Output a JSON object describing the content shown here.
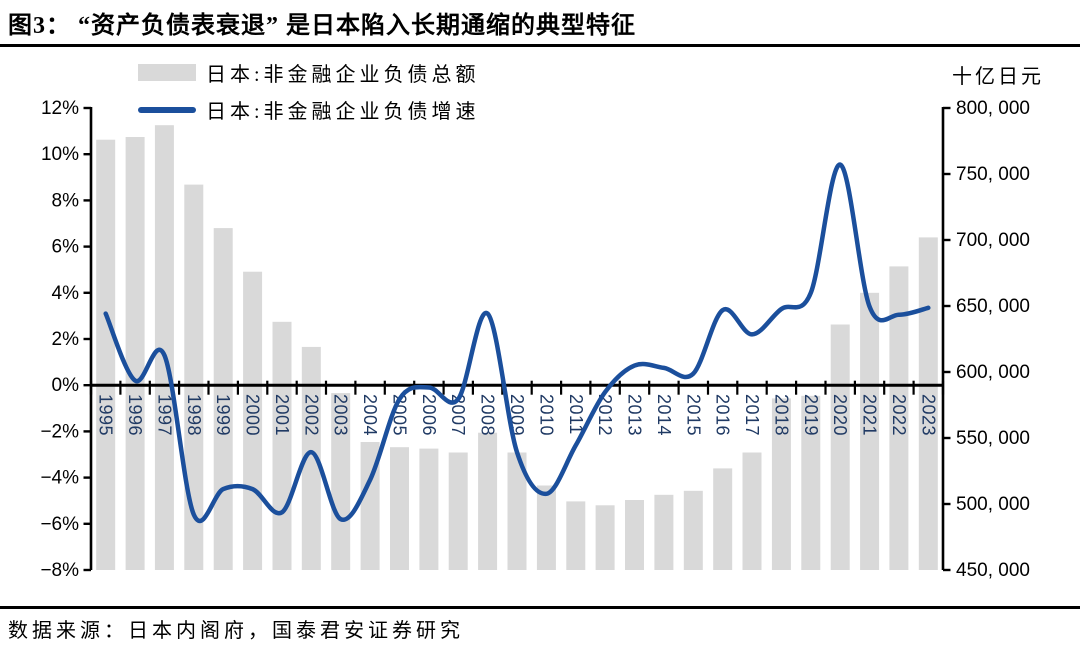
{
  "title": "图3： “资产负债表衰退” 是日本陷入长期通缩的典型特征",
  "source": "数据来源：日本内阁府，国泰君安证券研究",
  "colors": {
    "bar": "#d9d9d9",
    "line": "#1b4f9c",
    "year_label": "#203a64",
    "axis": "#000000"
  },
  "chart_data": {
    "type": "bar+line",
    "title": "",
    "legend_position": "top-left",
    "grid": false,
    "categories": [
      "1995",
      "1996",
      "1997",
      "1998",
      "1999",
      "2000",
      "2001",
      "2002",
      "2003",
      "2004",
      "2005",
      "2006",
      "2007",
      "2008",
      "2009",
      "2010",
      "2011",
      "2012",
      "2013",
      "2014",
      "2015",
      "2016",
      "2017",
      "2018",
      "2019",
      "2020",
      "2021",
      "2022",
      "2023"
    ],
    "series": [
      {
        "name": "日本:非金融企业负债总额",
        "type": "bar",
        "y_axis": "right",
        "color": "#d9d9d9",
        "values": [
          776000,
          778000,
          787000,
          742000,
          709000,
          676000,
          638000,
          619000,
          584000,
          547000,
          543000,
          542000,
          539000,
          554000,
          539000,
          514000,
          502000,
          499000,
          503000,
          507000,
          510000,
          527000,
          539000,
          580000,
          582000,
          636000,
          660000,
          680000,
          702000
        ]
      },
      {
        "name": "日本:非金融企业负债增速",
        "type": "line",
        "y_axis": "left",
        "color": "#1b4f9c",
        "values": [
          3.1,
          0.2,
          1.3,
          -5.6,
          -4.5,
          -4.5,
          -5.5,
          -2.9,
          -5.8,
          -4.1,
          -0.6,
          -0.1,
          -0.6,
          3.1,
          -2.9,
          -4.7,
          -2.6,
          -0.3,
          0.85,
          0.75,
          0.5,
          3.25,
          2.2,
          3.3,
          4.0,
          9.55,
          3.4,
          3.05,
          3.35
        ]
      }
    ],
    "left_axis": {
      "unit": "%",
      "min": -8,
      "max": 12,
      "step": 2,
      "tick_labels": [
        "12%",
        "10%",
        "8%",
        "6%",
        "4%",
        "2%",
        "0%",
        "−2%",
        "−4%",
        "−6%",
        "−8%"
      ]
    },
    "right_axis": {
      "title": "十亿日元",
      "min": 450000,
      "max": 800000,
      "step": 50000,
      "tick_labels": [
        "800, 000",
        "750, 000",
        "700, 000",
        "650, 000",
        "600, 000",
        "550, 000",
        "500, 000",
        "450, 000"
      ]
    }
  }
}
